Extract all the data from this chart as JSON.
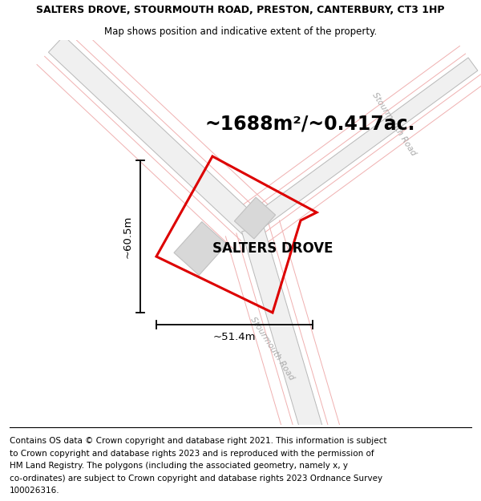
{
  "title_line1": "SALTERS DROVE, STOURMOUTH ROAD, PRESTON, CANTERBURY, CT3 1HP",
  "title_line2": "Map shows position and indicative extent of the property.",
  "area_text": "~1688m²/~0.417ac.",
  "dim_height": "~60.5m",
  "dim_width": "~51.4m",
  "label": "SALTERS DROVE",
  "road_label": "Stourmouth Road",
  "plot_color": "#dd0000",
  "road_gray_color": "#b8b8b8",
  "road_pink_color": "#f0b0b0",
  "road_pink_color2": "#e8c8c8",
  "building_color": "#d8d8d8",
  "building_edge": "#c0c0c0",
  "map_bg": "#ffffff",
  "title_fontsize": 9.0,
  "subtitle_fontsize": 8.5,
  "area_fontsize": 17,
  "label_fontsize": 12,
  "dim_fontsize": 9.5,
  "road_label_fontsize": 7.5,
  "footer_fontsize": 7.5,
  "footer_lines": [
    "Contains OS data © Crown copyright and database right 2021. This information is subject",
    "to Crown copyright and database rights 2023 and is reproduced with the permission of",
    "HM Land Registry. The polygons (including the associated geometry, namely x, y",
    "co-ordinates) are subject to Crown copyright and database rights 2023 Ordnance Survey",
    "100026316."
  ]
}
